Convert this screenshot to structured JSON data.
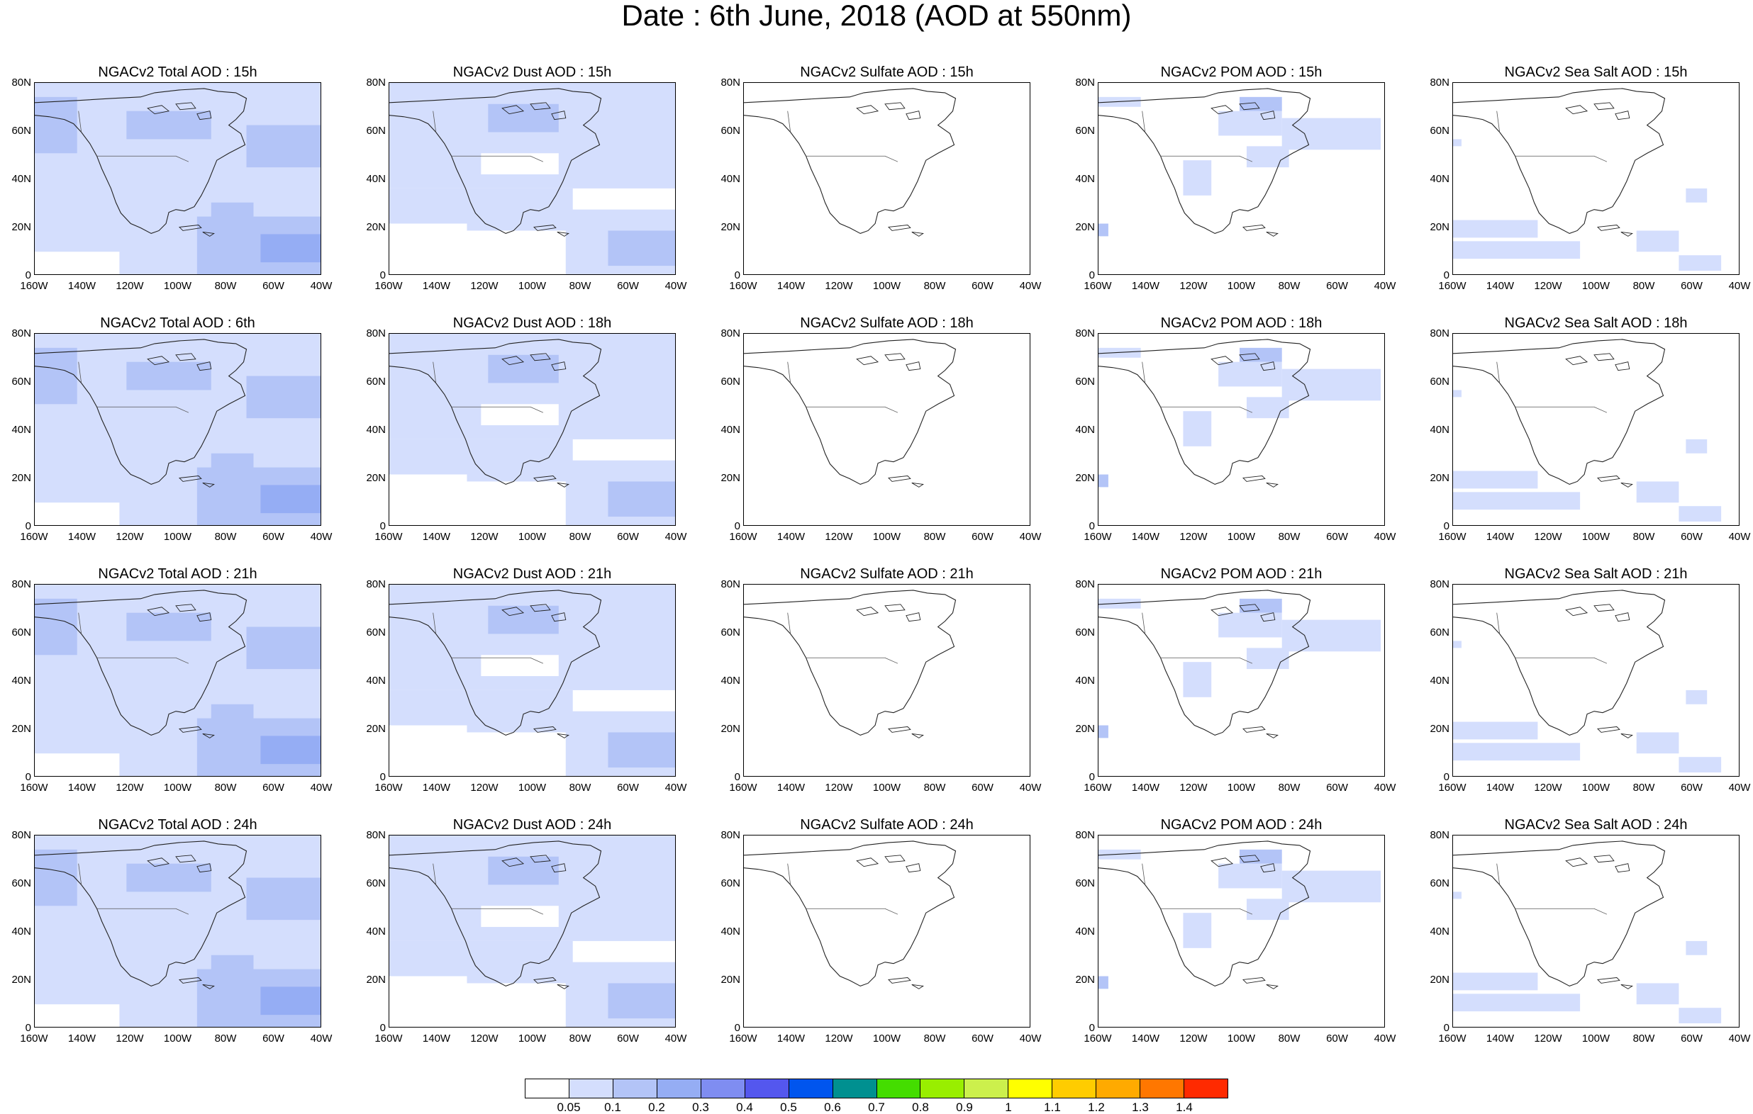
{
  "title": "Date : 6th June, 2018 (AOD at 550nm)",
  "axes": {
    "lat_labels": [
      "80N",
      "60N",
      "40N",
      "20N",
      "0"
    ],
    "lon_labels": [
      "160W",
      "140W",
      "120W",
      "100W",
      "80W",
      "60W",
      "40W"
    ]
  },
  "panels": [
    [
      "NGACv2 Total AOD : 15h",
      "NGACv2 Dust AOD : 15h",
      "NGACv2 Sulfate AOD : 15h",
      "NGACv2 POM AOD : 15h",
      "NGACv2 Sea Salt AOD : 15h"
    ],
    [
      "NGACv2 Total AOD : 6th",
      "NGACv2 Dust AOD : 18h",
      "NGACv2 Sulfate AOD : 18h",
      "NGACv2 POM AOD : 18h",
      "NGACv2 Sea Salt AOD : 18h"
    ],
    [
      "NGACv2 Total AOD : 21h",
      "NGACv2 Dust AOD : 21h",
      "NGACv2 Sulfate AOD : 21h",
      "NGACv2 POM AOD : 21h",
      "NGACv2 Sea Salt AOD : 21h"
    ],
    [
      "NGACv2 Total AOD : 24h",
      "NGACv2 Dust AOD : 24h",
      "NGACv2 Sulfate AOD : 24h",
      "NGACv2 POM AOD : 24h",
      "NGACv2 Sea Salt  AOD : 24h"
    ]
  ],
  "colorbar": {
    "labels": [
      "0.05",
      "0.1",
      "0.2",
      "0.3",
      "0.4",
      "0.5",
      "0.6",
      "0.7",
      "0.8",
      "0.9",
      "1",
      "1.1",
      "1.2",
      "1.3",
      "1.4"
    ],
    "colors": [
      "#ffffff",
      "#d4defd",
      "#b3c4f7",
      "#95adf4",
      "#7f8df1",
      "#5457ee",
      "#0055ee",
      "#009090",
      "#44dd00",
      "#99ee00",
      "#ccf04c",
      "#ffff00",
      "#ffcc00",
      "#ffaa00",
      "#ff7700",
      "#ff2a00"
    ]
  },
  "fill_colors": {
    "light": "#d4defd",
    "medium": "#b3c4f7",
    "dark": "#95adf4"
  }
}
